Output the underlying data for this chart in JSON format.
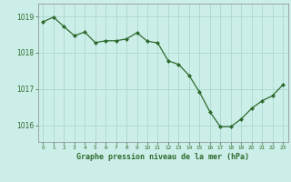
{
  "x": [
    0,
    1,
    2,
    3,
    4,
    5,
    6,
    7,
    8,
    9,
    10,
    11,
    12,
    13,
    14,
    15,
    16,
    17,
    18,
    19,
    20,
    21,
    22,
    23
  ],
  "y": [
    1018.85,
    1018.98,
    1018.72,
    1018.47,
    1018.57,
    1018.28,
    1018.33,
    1018.33,
    1018.38,
    1018.55,
    1018.32,
    1018.27,
    1017.78,
    1017.68,
    1017.38,
    1016.92,
    1016.38,
    1015.97,
    1015.97,
    1016.18,
    1016.47,
    1016.68,
    1016.82,
    1017.12
  ],
  "line_color": "#2d6a2d",
  "marker_color": "#2d6a2d",
  "bg_color": "#cceee8",
  "grid_color": "#aad8d0",
  "xlabel": "Graphe pression niveau de la mer (hPa)",
  "xlabel_color": "#2d6a2d",
  "ylabel_ticks": [
    1016,
    1017,
    1018,
    1019
  ],
  "ylim": [
    1015.55,
    1019.35
  ],
  "xlim": [
    -0.5,
    23.5
  ],
  "xtick_labels": [
    "0",
    "1",
    "2",
    "3",
    "4",
    "5",
    "6",
    "7",
    "8",
    "9",
    "10",
    "11",
    "12",
    "13",
    "14",
    "15",
    "16",
    "17",
    "18",
    "19",
    "20",
    "21",
    "22",
    "23"
  ],
  "tick_color": "#2d6a2d",
  "spine_color": "#888888"
}
